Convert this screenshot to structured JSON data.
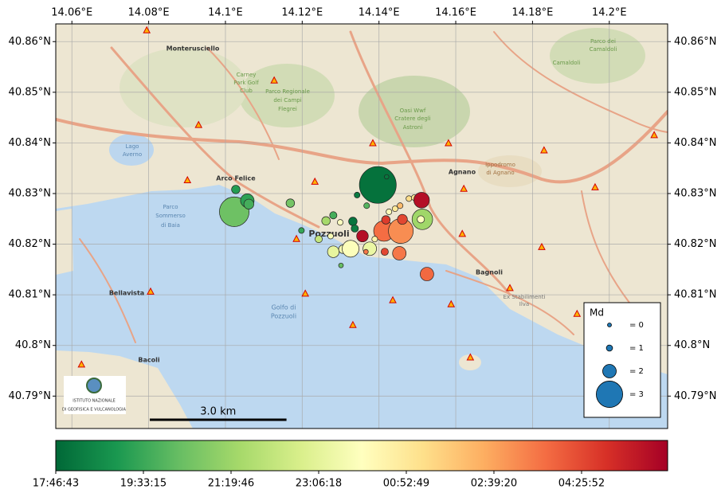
{
  "map": {
    "xlim": [
      14.0558,
      14.2152
    ],
    "ylim": [
      40.7836,
      40.8635
    ],
    "xticks": [
      {
        "value": 14.06,
        "label": "14.06°E"
      },
      {
        "value": 14.08,
        "label": "14.08°E"
      },
      {
        "value": 14.1,
        "label": "14.1°E"
      },
      {
        "value": 14.12,
        "label": "14.12°E"
      },
      {
        "value": 14.14,
        "label": "14.14°E"
      },
      {
        "value": 14.16,
        "label": "14.16°E"
      },
      {
        "value": 14.18,
        "label": "14.18°E"
      },
      {
        "value": 14.2,
        "label": "14.2°E"
      }
    ],
    "yticks": [
      {
        "value": 40.79,
        "label": "40.79°N"
      },
      {
        "value": 40.8,
        "label": "40.8°N"
      },
      {
        "value": 40.81,
        "label": "40.81°N"
      },
      {
        "value": 40.82,
        "label": "40.82°N"
      },
      {
        "value": 40.83,
        "label": "40.83°N"
      },
      {
        "value": 40.84,
        "label": "40.84°N"
      },
      {
        "value": 40.85,
        "label": "40.85°N"
      },
      {
        "value": 40.86,
        "label": "40.86°N"
      }
    ],
    "grid": true,
    "colormap": "RdYlGn_r",
    "events": {
      "lon": [
        14.1397,
        14.142,
        14.1023,
        14.1057,
        14.1027,
        14.1061,
        14.1169,
        14.1198,
        14.1243,
        14.1262,
        14.1281,
        14.1299,
        14.1332,
        14.1337,
        14.1343,
        14.1368,
        14.1357,
        14.1274,
        14.1281,
        14.1306,
        14.1326,
        14.1376,
        14.1301,
        14.1413,
        14.1457,
        14.1461,
        14.1418,
        14.1426,
        14.1442,
        14.1455,
        14.1478,
        14.1492,
        14.1511,
        14.1513,
        14.1509,
        14.1453,
        14.1415,
        14.1366,
        14.1525,
        14.1389
      ],
      "lat": [
        40.8317,
        40.8333,
        40.8264,
        40.8286,
        40.8308,
        40.8279,
        40.8281,
        40.8227,
        40.821,
        40.8246,
        40.8257,
        40.8243,
        40.8245,
        40.8231,
        40.8297,
        40.8276,
        40.8216,
        40.8216,
        40.8185,
        40.819,
        40.8191,
        40.8191,
        40.8158,
        40.8226,
        40.8226,
        40.8249,
        40.8248,
        40.8264,
        40.827,
        40.8276,
        40.829,
        40.8292,
        40.8287,
        40.8249,
        40.8249,
        40.8182,
        40.8185,
        40.8185,
        40.8141,
        40.821
      ],
      "md": [
        3.6,
        0.5,
        3.2,
        2.0,
        1.4,
        1.6,
        1.4,
        0.9,
        1.2,
        1.4,
        1.2,
        0.9,
        1.4,
        1.2,
        0.9,
        0.9,
        1.8,
        0.9,
        1.8,
        1.4,
        2.3,
        2.0,
        0.6,
        2.6,
        2.9,
        1.6,
        1.4,
        0.9,
        0.9,
        0.9,
        0.9,
        0.9,
        2.2,
        2.6,
        1.2,
        2.0,
        1.2,
        0.6,
        2.0,
        0.9
      ],
      "time": [
        900,
        1500,
        9500,
        5500,
        5000,
        7000,
        10000,
        6000,
        16000,
        13400,
        7000,
        22300,
        1200,
        2000,
        1800,
        8000,
        43300,
        21500,
        19500,
        21000,
        22000,
        20000,
        9000,
        35700,
        33500,
        38500,
        39300,
        23000,
        25500,
        30000,
        27000,
        26000,
        43300,
        13000,
        22300,
        35000,
        38500,
        35000,
        36000,
        24000
      ]
    },
    "stations": {
      "lon": [
        14.0795,
        14.1127,
        14.093,
        14.1384,
        14.1581,
        14.183,
        14.2117,
        14.0901,
        14.1233,
        14.1621,
        14.1963,
        14.1185,
        14.1617,
        14.1824,
        14.0805,
        14.1208,
        14.1436,
        14.1741,
        14.1588,
        14.1916,
        14.1332,
        14.1638,
        14.0625
      ],
      "lat": [
        40.8622,
        40.8523,
        40.8435,
        40.8399,
        40.8399,
        40.8385,
        40.8415,
        40.8326,
        40.8323,
        40.8309,
        40.8312,
        40.821,
        40.822,
        40.8194,
        40.8106,
        40.8102,
        40.8089,
        40.8113,
        40.8081,
        40.8062,
        40.804,
        40.7976,
        40.7962
      ]
    },
    "legend": {
      "title": "Md",
      "entries": [
        {
          "value": 0,
          "label": "= 0"
        },
        {
          "value": 1,
          "label": "= 1"
        },
        {
          "value": 2,
          "label": "= 2"
        },
        {
          "value": 3,
          "label": "= 3"
        }
      ]
    },
    "colorbar": {
      "clim": [
        0,
        44626
      ],
      "ticks": [
        {
          "value": 0,
          "label": "17:46:43"
        },
        {
          "value": 6392,
          "label": "19:33:15"
        },
        {
          "value": 12783,
          "label": "21:19:46"
        },
        {
          "value": 19175,
          "label": "23:06:18"
        },
        {
          "value": 25566,
          "label": "00:52:49"
        },
        {
          "value": 31957,
          "label": "02:39:20"
        },
        {
          "value": 38349,
          "label": "04:25:52"
        }
      ]
    },
    "scale_bar": {
      "value": 3,
      "label": "3.0 km"
    },
    "places": [
      "Monterusciello",
      "Carney",
      "Park Golf",
      "Club",
      "Parco Regionale",
      "dei Campi",
      "Flegrei",
      "Oasi Wwf",
      "Cratere degli",
      "Astroni",
      "Lago",
      "Averno",
      "Arco Felice",
      "Agnano",
      "Ippodromo",
      "di Agnano",
      "Camaldoli",
      "Parco dei",
      "Camaldoli",
      "Pozzuoli",
      "Parco",
      "Sommerso",
      "di Baia",
      "Bagnoli",
      "Bellavista",
      "Golfo di",
      "Pozzuoli",
      "Bacoli",
      "Ex Stabilimenti",
      "Ilva"
    ],
    "logo": [
      "ISTITUTO NAZIONALE",
      "DI GEOFISICA E VULCANOLOGIA"
    ]
  }
}
